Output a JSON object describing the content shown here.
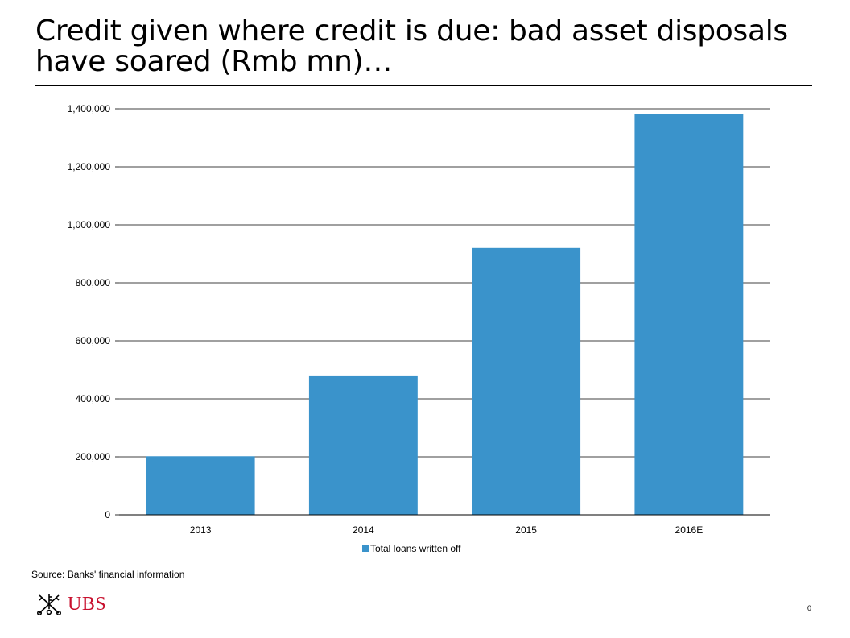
{
  "slide": {
    "title_line1": "Credit given where credit is due: bad asset disposals",
    "title_line2": "have soared (Rmb mn)…",
    "source": "Source: Banks' financial information",
    "brand": "UBS",
    "page_number": "0"
  },
  "colors": {
    "bar": "#3a93cb",
    "brand": "#c8102e",
    "grid": "#000000"
  },
  "chart_data": {
    "type": "bar",
    "categories": [
      "2013",
      "2014",
      "2015",
      "2016E"
    ],
    "category_labels_shown": [
      "2013",
      "2014",
      "2015",
      "2016E"
    ],
    "series": [
      {
        "name": "Total loans written off",
        "values": [
          202000,
          478000,
          920000,
          1381000
        ]
      }
    ],
    "ylim": [
      0,
      1400000
    ],
    "yticks": [
      0,
      200000,
      400000,
      600000,
      800000,
      1000000,
      1200000,
      1400000
    ],
    "ytick_labels": [
      "0",
      "200,000",
      "400,000",
      "600,000",
      "800,000",
      "1,000,000",
      "1,200,000",
      "1,400,000"
    ],
    "grid": true,
    "legend_position": "bottom-center",
    "xlabel": "",
    "ylabel": ""
  }
}
